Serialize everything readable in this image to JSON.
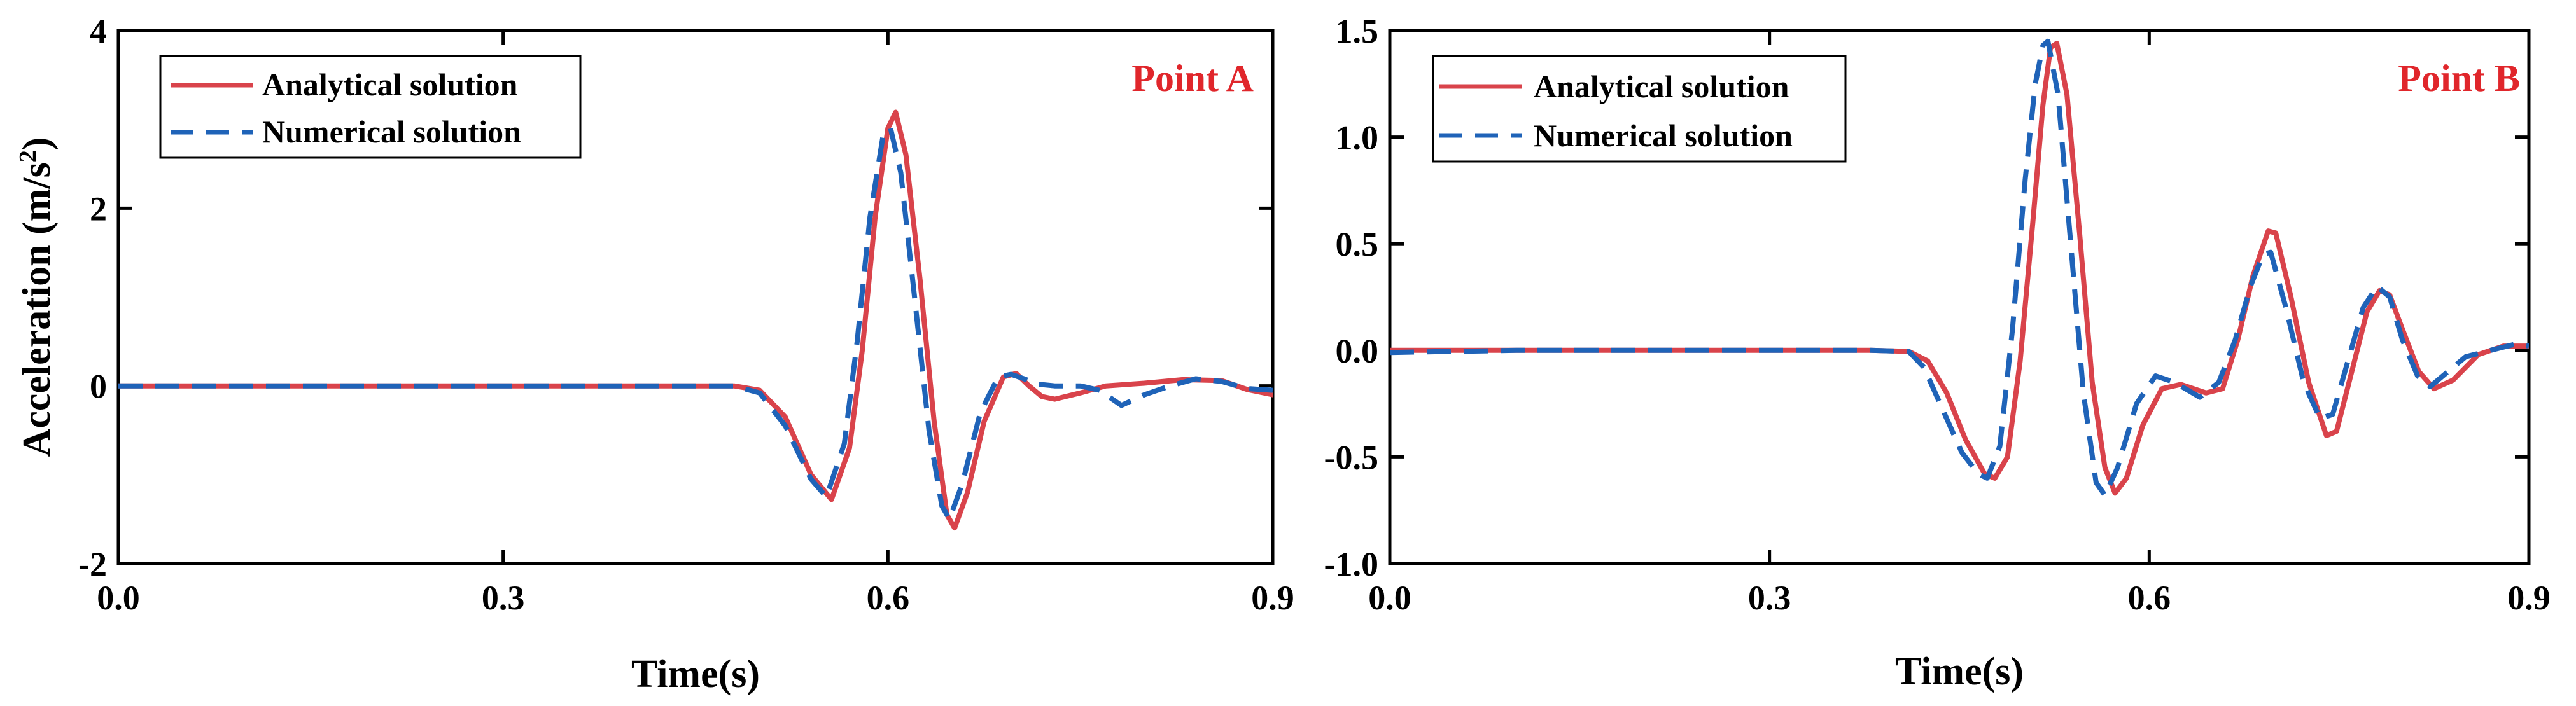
{
  "chart_data": [
    {
      "type": "line",
      "panel_label": "Point A",
      "xlabel": "Time(s)",
      "ylabel": "Acceleration (m/s",
      "ylabel_superscript": "2",
      "ylabel_close": ")",
      "xlim": [
        0.0,
        0.9
      ],
      "ylim": [
        -2,
        4
      ],
      "xticks": [
        0.0,
        0.3,
        0.6,
        0.9
      ],
      "xtick_labels": [
        "0.0",
        "0.3",
        "0.6",
        "0.9"
      ],
      "yticks": [
        -2,
        0,
        2,
        4
      ],
      "ytick_labels": [
        "-2",
        "0",
        "2",
        "4"
      ],
      "legend": "top-left",
      "grid": false,
      "series": [
        {
          "name": "Analytical solution",
          "color": "#d9434b",
          "style": "solid",
          "points": [
            [
              0.0,
              0.0
            ],
            [
              0.1,
              0.0
            ],
            [
              0.2,
              0.0
            ],
            [
              0.3,
              0.0
            ],
            [
              0.4,
              0.0
            ],
            [
              0.48,
              0.0
            ],
            [
              0.5,
              -0.05
            ],
            [
              0.52,
              -0.35
            ],
            [
              0.54,
              -1.0
            ],
            [
              0.556,
              -1.28
            ],
            [
              0.57,
              -0.7
            ],
            [
              0.58,
              0.4
            ],
            [
              0.59,
              1.9
            ],
            [
              0.6,
              2.9
            ],
            [
              0.606,
              3.08
            ],
            [
              0.614,
              2.6
            ],
            [
              0.625,
              1.2
            ],
            [
              0.636,
              -0.4
            ],
            [
              0.646,
              -1.45
            ],
            [
              0.652,
              -1.6
            ],
            [
              0.662,
              -1.2
            ],
            [
              0.675,
              -0.4
            ],
            [
              0.69,
              0.1
            ],
            [
              0.7,
              0.14
            ],
            [
              0.71,
              0.0
            ],
            [
              0.72,
              -0.12
            ],
            [
              0.73,
              -0.15
            ],
            [
              0.75,
              -0.08
            ],
            [
              0.77,
              0.0
            ],
            [
              0.8,
              0.03
            ],
            [
              0.83,
              0.07
            ],
            [
              0.86,
              0.06
            ],
            [
              0.88,
              -0.04
            ],
            [
              0.9,
              -0.1
            ]
          ]
        },
        {
          "name": "Numerical solution",
          "color": "#1f63b8",
          "style": "dashed",
          "points": [
            [
              0.0,
              0.0
            ],
            [
              0.1,
              0.0
            ],
            [
              0.2,
              0.0
            ],
            [
              0.3,
              0.0
            ],
            [
              0.4,
              0.0
            ],
            [
              0.48,
              0.0
            ],
            [
              0.5,
              -0.08
            ],
            [
              0.52,
              -0.45
            ],
            [
              0.54,
              -1.05
            ],
            [
              0.552,
              -1.25
            ],
            [
              0.566,
              -0.65
            ],
            [
              0.576,
              0.5
            ],
            [
              0.586,
              1.9
            ],
            [
              0.596,
              2.8
            ],
            [
              0.602,
              2.9
            ],
            [
              0.61,
              2.4
            ],
            [
              0.62,
              1.1
            ],
            [
              0.632,
              -0.5
            ],
            [
              0.642,
              -1.35
            ],
            [
              0.648,
              -1.5
            ],
            [
              0.658,
              -1.1
            ],
            [
              0.672,
              -0.3
            ],
            [
              0.686,
              0.1
            ],
            [
              0.696,
              0.13
            ],
            [
              0.706,
              0.08
            ],
            [
              0.716,
              0.02
            ],
            [
              0.73,
              0.0
            ],
            [
              0.75,
              0.0
            ],
            [
              0.765,
              -0.05
            ],
            [
              0.782,
              -0.22
            ],
            [
              0.8,
              -0.1
            ],
            [
              0.82,
              0.0
            ],
            [
              0.84,
              0.08
            ],
            [
              0.86,
              0.05
            ],
            [
              0.88,
              -0.03
            ],
            [
              0.9,
              -0.05
            ]
          ]
        }
      ]
    },
    {
      "type": "line",
      "panel_label": "Point B",
      "xlabel": "Time(s)",
      "ylabel": "",
      "xlim": [
        0.0,
        0.9
      ],
      "ylim": [
        -1.0,
        1.5
      ],
      "xticks": [
        0.0,
        0.3,
        0.6,
        0.9
      ],
      "xtick_labels": [
        "0.0",
        "0.3",
        "0.6",
        "0.9"
      ],
      "yticks": [
        -1.0,
        -0.5,
        0.0,
        0.5,
        1.0,
        1.5
      ],
      "ytick_labels": [
        "-1.0",
        "-0.5",
        "0.0",
        "0.5",
        "1.0",
        "1.5"
      ],
      "legend": "top-left",
      "grid": false,
      "series": [
        {
          "name": "Analytical solution",
          "color": "#d9434b",
          "style": "solid",
          "points": [
            [
              0.0,
              0.0
            ],
            [
              0.1,
              0.0
            ],
            [
              0.2,
              0.0
            ],
            [
              0.3,
              0.0
            ],
            [
              0.38,
              0.0
            ],
            [
              0.41,
              -0.005
            ],
            [
              0.425,
              -0.05
            ],
            [
              0.44,
              -0.2
            ],
            [
              0.455,
              -0.42
            ],
            [
              0.47,
              -0.58
            ],
            [
              0.478,
              -0.6
            ],
            [
              0.488,
              -0.5
            ],
            [
              0.498,
              -0.05
            ],
            [
              0.508,
              0.6
            ],
            [
              0.516,
              1.15
            ],
            [
              0.522,
              1.42
            ],
            [
              0.527,
              1.44
            ],
            [
              0.535,
              1.2
            ],
            [
              0.545,
              0.55
            ],
            [
              0.555,
              -0.15
            ],
            [
              0.565,
              -0.55
            ],
            [
              0.573,
              -0.67
            ],
            [
              0.582,
              -0.6
            ],
            [
              0.595,
              -0.35
            ],
            [
              0.61,
              -0.18
            ],
            [
              0.625,
              -0.16
            ],
            [
              0.645,
              -0.2
            ],
            [
              0.658,
              -0.18
            ],
            [
              0.67,
              0.05
            ],
            [
              0.682,
              0.35
            ],
            [
              0.694,
              0.56
            ],
            [
              0.7,
              0.55
            ],
            [
              0.712,
              0.25
            ],
            [
              0.726,
              -0.15
            ],
            [
              0.74,
              -0.4
            ],
            [
              0.748,
              -0.38
            ],
            [
              0.76,
              -0.1
            ],
            [
              0.772,
              0.18
            ],
            [
              0.782,
              0.28
            ],
            [
              0.79,
              0.26
            ],
            [
              0.8,
              0.1
            ],
            [
              0.813,
              -0.1
            ],
            [
              0.825,
              -0.18
            ],
            [
              0.84,
              -0.14
            ],
            [
              0.86,
              -0.02
            ],
            [
              0.88,
              0.02
            ],
            [
              0.9,
              0.02
            ]
          ]
        },
        {
          "name": "Numerical solution",
          "color": "#1f63b8",
          "style": "dashed",
          "points": [
            [
              0.0,
              -0.01
            ],
            [
              0.1,
              0.0
            ],
            [
              0.2,
              0.0
            ],
            [
              0.3,
              0.0
            ],
            [
              0.38,
              0.0
            ],
            [
              0.41,
              -0.005
            ],
            [
              0.422,
              -0.08
            ],
            [
              0.437,
              -0.28
            ],
            [
              0.452,
              -0.48
            ],
            [
              0.465,
              -0.58
            ],
            [
              0.472,
              -0.6
            ],
            [
              0.482,
              -0.45
            ],
            [
              0.492,
              0.1
            ],
            [
              0.502,
              0.8
            ],
            [
              0.51,
              1.25
            ],
            [
              0.516,
              1.43
            ],
            [
              0.52,
              1.45
            ],
            [
              0.528,
              1.2
            ],
            [
              0.538,
              0.5
            ],
            [
              0.548,
              -0.2
            ],
            [
              0.558,
              -0.62
            ],
            [
              0.565,
              -0.68
            ],
            [
              0.575,
              -0.55
            ],
            [
              0.59,
              -0.25
            ],
            [
              0.605,
              -0.12
            ],
            [
              0.62,
              -0.15
            ],
            [
              0.64,
              -0.22
            ],
            [
              0.655,
              -0.15
            ],
            [
              0.668,
              0.05
            ],
            [
              0.68,
              0.3
            ],
            [
              0.69,
              0.45
            ],
            [
              0.696,
              0.46
            ],
            [
              0.708,
              0.2
            ],
            [
              0.722,
              -0.15
            ],
            [
              0.735,
              -0.32
            ],
            [
              0.745,
              -0.3
            ],
            [
              0.757,
              -0.05
            ],
            [
              0.769,
              0.2
            ],
            [
              0.78,
              0.3
            ],
            [
              0.79,
              0.25
            ],
            [
              0.8,
              0.05
            ],
            [
              0.812,
              -0.12
            ],
            [
              0.822,
              -0.17
            ],
            [
              0.836,
              -0.1
            ],
            [
              0.85,
              -0.03
            ],
            [
              0.87,
              0.0
            ],
            [
              0.89,
              0.03
            ],
            [
              0.9,
              0.02
            ]
          ]
        }
      ]
    }
  ]
}
